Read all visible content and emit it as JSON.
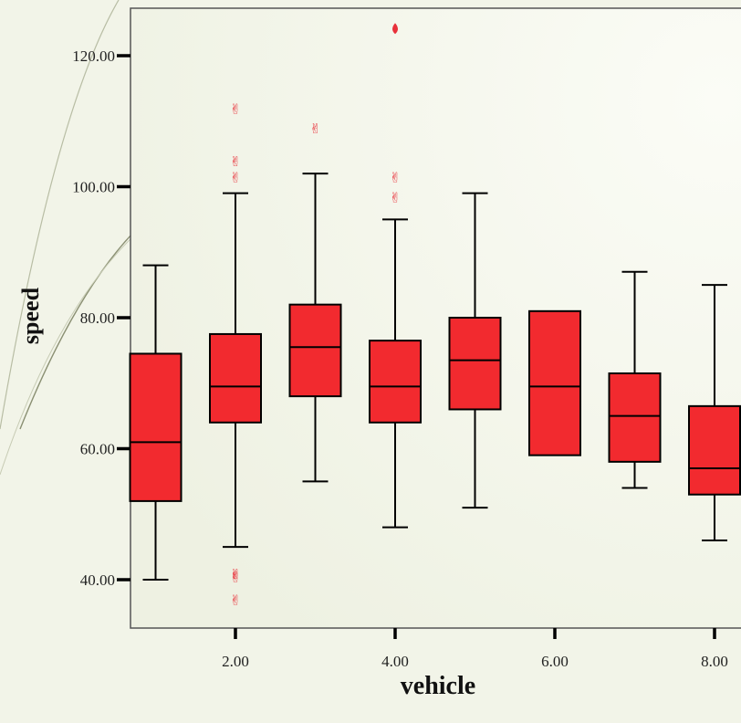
{
  "chart_data": {
    "type": "boxplot",
    "title": "",
    "xlabel": "vehicle",
    "ylabel": "speed",
    "ylim": [
      35,
      126
    ],
    "y_ticks": [
      40,
      60,
      80,
      100,
      120
    ],
    "y_tick_labels": [
      "40.00",
      "60.00",
      "80.00",
      "100.00",
      "120.00"
    ],
    "x_ticks": [
      2,
      4,
      6,
      8
    ],
    "x_tick_labels": [
      "2.00",
      "4.00",
      "6.00",
      "8.00"
    ],
    "box_color": "#f22a2f",
    "outlier_color": "#e8313a",
    "background": "#f2f4e8",
    "boxes": [
      {
        "x": 1,
        "min": 40,
        "q1": 52,
        "median": 61,
        "q3": 74.5,
        "max": 88,
        "outliers": []
      },
      {
        "x": 2,
        "min": 45,
        "q1": 64,
        "median": 69.5,
        "q3": 77.5,
        "max": 99,
        "outliers": [
          112,
          104,
          101.5,
          41,
          40.5,
          37
        ]
      },
      {
        "x": 3,
        "min": 55,
        "q1": 68,
        "median": 75.5,
        "q3": 82,
        "max": 102,
        "outliers": [
          109
        ]
      },
      {
        "x": 4,
        "min": 48,
        "q1": 64,
        "median": 69.5,
        "q3": 76.5,
        "max": 95,
        "outliers": [
          101.5,
          98.5
        ]
      },
      {
        "x": 5,
        "min": 51,
        "q1": 66,
        "median": 73.5,
        "q3": 80,
        "max": 99,
        "outliers": []
      },
      {
        "x": 6,
        "min": 59,
        "q1": 59,
        "median": 69.5,
        "q3": 81,
        "max": 81,
        "outliers": []
      },
      {
        "x": 7,
        "min": 54,
        "q1": 58,
        "median": 65,
        "q3": 71.5,
        "max": 87,
        "outliers": []
      },
      {
        "x": 8,
        "min": 46,
        "q1": 53,
        "median": 57,
        "q3": 66.5,
        "max": 85,
        "outliers": []
      }
    ],
    "extreme_points": [
      {
        "x": 4,
        "y": 124
      }
    ]
  }
}
